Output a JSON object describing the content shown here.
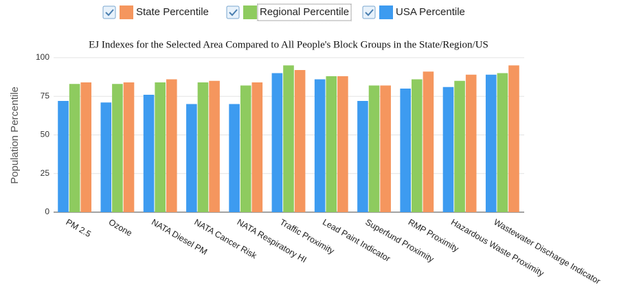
{
  "chart_data": {
    "type": "bar",
    "title": "EJ Indexes for the Selected Area Compared to All People's Block Groups in the State/Region/US",
    "y_label": "Population Percentile",
    "categories": [
      "PM 2.5",
      "Ozone",
      "NATA Diesel PM",
      "NATA Cancer Risk",
      "NATA Respiratory HI",
      "Traffic Proximity",
      "Lead Paint Indicator",
      "Superfund Proximity",
      "RMP Proximity",
      "Hazardous Waste Proximity",
      "Wastewater Discharge Indicator"
    ],
    "series": [
      {
        "name": "USA Percentile",
        "color": "#3d9bf0",
        "values": [
          72,
          71,
          76,
          70,
          70,
          90,
          86,
          72,
          80,
          81,
          89
        ]
      },
      {
        "name": "Regional Percentile",
        "color": "#8ecb5f",
        "values": [
          83,
          83,
          84,
          84,
          82,
          95,
          88,
          82,
          86,
          85,
          90
        ]
      },
      {
        "name": "State Percentile",
        "color": "#f5965e",
        "values": [
          84,
          84,
          86,
          85,
          84,
          92,
          88,
          82,
          91,
          89,
          95
        ]
      }
    ],
    "ylim": [
      0,
      100
    ],
    "yticks": [
      0,
      25,
      50,
      75,
      100
    ],
    "grid": true
  }
}
